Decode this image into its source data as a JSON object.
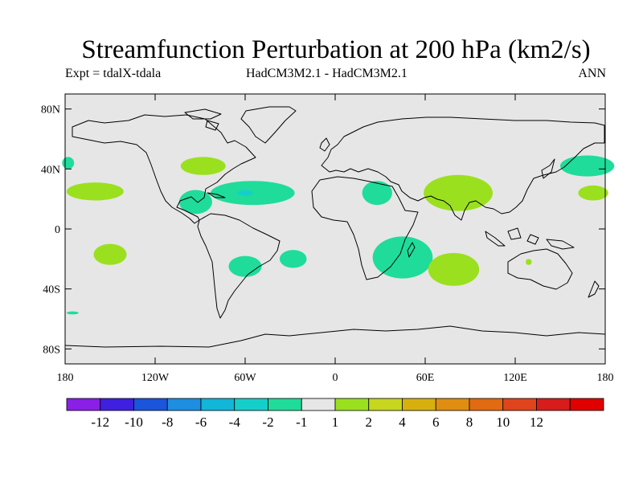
{
  "title": "Streamfunction Perturbation at 200 hPa (km2/s)",
  "subtitle_left": "Expt = tdalX-tdala",
  "subtitle_center": "HadCM3M2.1 - HadCM3M2.1",
  "subtitle_right": "ANN",
  "map": {
    "background_color": "#e6e6e6",
    "lat_ticks": [
      {
        "value": 80,
        "label": "80N"
      },
      {
        "value": 40,
        "label": "40N"
      },
      {
        "value": 0,
        "label": "0"
      },
      {
        "value": -40,
        "label": "40S"
      },
      {
        "value": -80,
        "label": "80S"
      }
    ],
    "lon_ticks": [
      {
        "value": -180,
        "label": "180"
      },
      {
        "value": -120,
        "label": "120W"
      },
      {
        "value": -60,
        "label": "60W"
      },
      {
        "value": 0,
        "label": "0"
      },
      {
        "value": 60,
        "label": "60E"
      },
      {
        "value": 120,
        "label": "120E"
      },
      {
        "value": 180,
        "label": "180"
      }
    ]
  },
  "colorbar": {
    "colors": [
      "#8a1fe6",
      "#3f1fe0",
      "#1a55dc",
      "#1e8ee0",
      "#11b6d8",
      "#14cfc9",
      "#1fdc9b",
      "#e6e6e6",
      "#9be01e",
      "#c7d61e",
      "#d8b00e",
      "#e08d12",
      "#e26a10",
      "#e0441c",
      "#d81c1c",
      "#e00000"
    ],
    "labels": [
      "-12",
      "-10",
      "-8",
      "-6",
      "-4",
      "-2",
      "-1",
      "1",
      "2",
      "4",
      "6",
      "8",
      "10",
      "12"
    ]
  },
  "anomalies": [
    {
      "name": "anomaly-n-atlantic-negative",
      "lon": -55,
      "lat": 24,
      "rlon": 28,
      "rlat": 8,
      "color": "#1fdc9b"
    },
    {
      "name": "anomaly-caribbean-negative",
      "lon": -93,
      "lat": 18,
      "rlon": 11,
      "rlat": 8,
      "color": "#1fdc9b"
    },
    {
      "name": "anomaly-n-atlantic-core",
      "lon": -60,
      "lat": 24,
      "rlon": 5,
      "rlat": 2,
      "color": "#14cfc9"
    },
    {
      "name": "anomaly-n-america-positive",
      "lon": -88,
      "lat": 42,
      "rlon": 15,
      "rlat": 6,
      "color": "#9be01e"
    },
    {
      "name": "anomaly-ne-pacific-positive",
      "lon": -160,
      "lat": 25,
      "rlon": 19,
      "rlat": 6,
      "color": "#9be01e"
    },
    {
      "name": "anomaly-pacific-west-edge",
      "lon": -178,
      "lat": 44,
      "rlon": 4,
      "rlat": 4,
      "color": "#1fdc9b"
    },
    {
      "name": "anomaly-south-pacific-positive",
      "lon": -150,
      "lat": -17,
      "rlon": 11,
      "rlat": 7,
      "color": "#9be01e"
    },
    {
      "name": "anomaly-s-america-west-negative",
      "lon": -60,
      "lat": -25,
      "rlon": 11,
      "rlat": 7,
      "color": "#1fdc9b"
    },
    {
      "name": "anomaly-s-atlantic-negative",
      "lon": -28,
      "lat": -20,
      "rlon": 9,
      "rlat": 6,
      "color": "#1fdc9b"
    },
    {
      "name": "anomaly-africa-north-negative",
      "lon": 28,
      "lat": 24,
      "rlon": 10,
      "rlat": 8,
      "color": "#1fdc9b"
    },
    {
      "name": "anomaly-asia-positive",
      "lon": 82,
      "lat": 24,
      "rlon": 23,
      "rlat": 12,
      "color": "#9be01e"
    },
    {
      "name": "anomaly-s-africa-negative",
      "lon": 45,
      "lat": -19,
      "rlon": 20,
      "rlat": 14,
      "color": "#1fdc9b"
    },
    {
      "name": "anomaly-indian-ocean-positive",
      "lon": 79,
      "lat": -27,
      "rlon": 17,
      "rlat": 11,
      "color": "#9be01e"
    },
    {
      "name": "anomaly-australia-positive",
      "lon": 129,
      "lat": -22,
      "rlon": 2,
      "rlat": 2,
      "color": "#9be01e"
    },
    {
      "name": "anomaly-nw-pacific-negative",
      "lon": 168,
      "lat": 42,
      "rlon": 18,
      "rlat": 7,
      "color": "#1fdc9b"
    },
    {
      "name": "anomaly-w-pacific-positive",
      "lon": 172,
      "lat": 24,
      "rlon": 10,
      "rlat": 5,
      "color": "#9be01e"
    },
    {
      "name": "anomaly-south-pacific-small",
      "lon": -175,
      "lat": -56,
      "rlon": 4,
      "rlat": 1,
      "color": "#1fdc9b"
    }
  ]
}
